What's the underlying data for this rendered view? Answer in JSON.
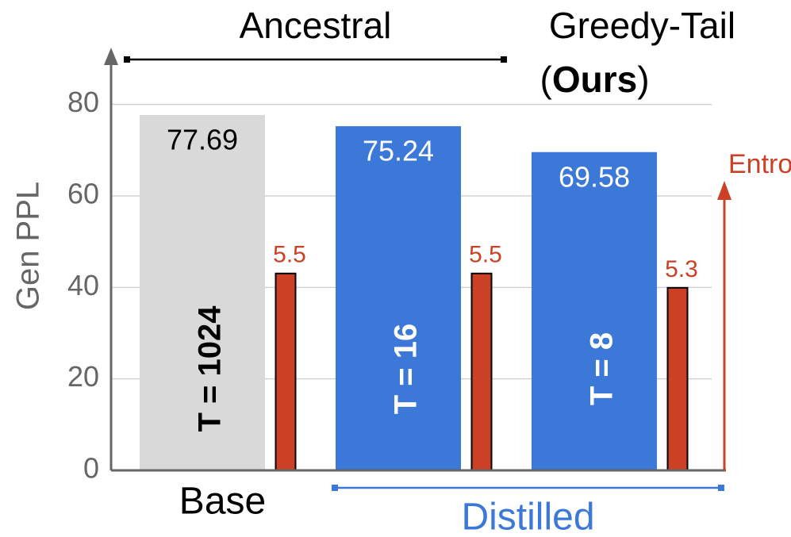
{
  "chart_data": {
    "type": "bar",
    "categories": [
      "T = 1024",
      "T = 16",
      "T = 8"
    ],
    "series": [
      {
        "name": "Gen PPL",
        "values": [
          77.69,
          75.24,
          69.58
        ],
        "colors": [
          "#d9d9d9",
          "#3c78d8",
          "#3c78d8"
        ],
        "label_colors": [
          "#000000",
          "#ffffff",
          "#ffffff"
        ]
      },
      {
        "name": "Entropy",
        "axis": "y2",
        "values": [
          5.5,
          5.5,
          5.3
        ],
        "color": "#cc4125"
      }
    ],
    "ylim": [
      0,
      90
    ],
    "yticks": [
      0,
      20,
      40,
      60,
      80
    ],
    "y2lim": [
      2.75,
      8.5
    ],
    "grid": true,
    "groups": [
      {
        "label": "Base",
        "size": 1,
        "color": "#000000"
      },
      {
        "label": "Distilled",
        "size": 2,
        "color": "#3c78d8"
      }
    ],
    "methods": [
      {
        "label": "Ancestral",
        "size": 2
      },
      {
        "label": "Greedy-Tail",
        "note": "(Ours)",
        "size": 1
      }
    ]
  }
}
